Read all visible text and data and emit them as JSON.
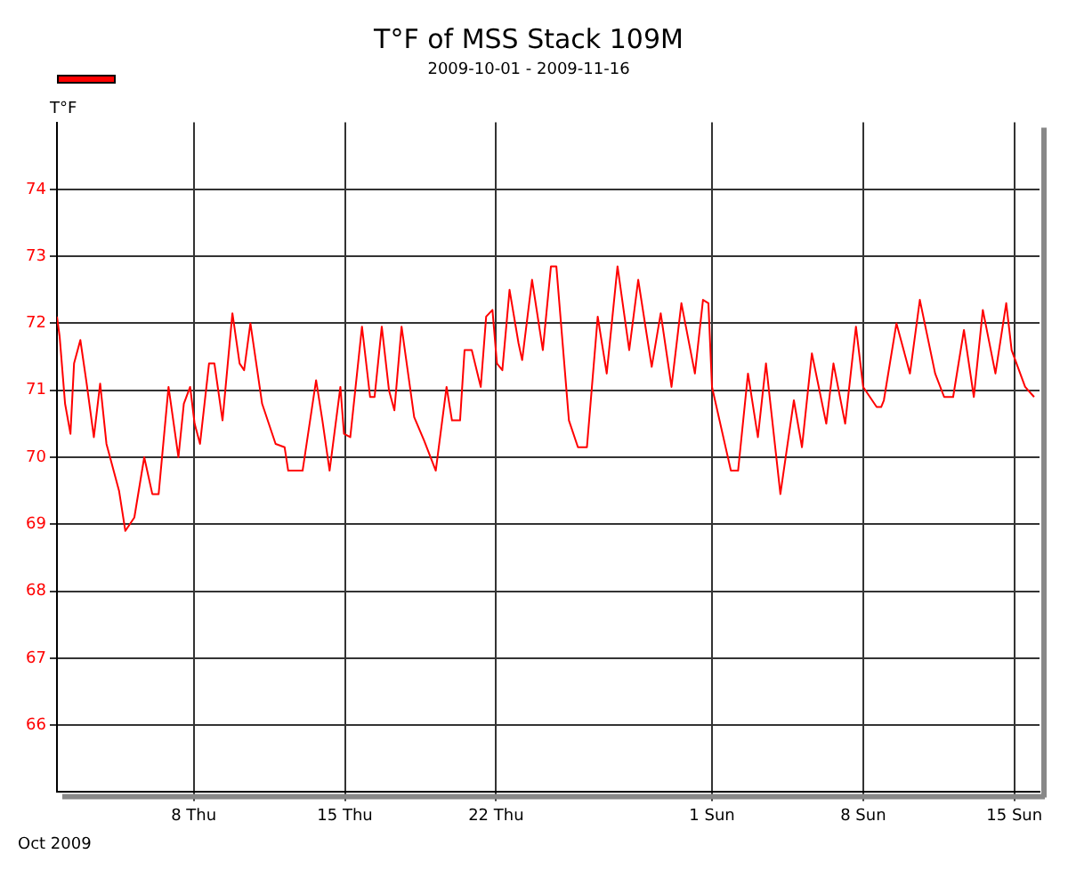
{
  "chart_data": {
    "type": "line",
    "title": "T°F of MSS Stack 109M",
    "subtitle": "2009-10-01 - 2009-11-16",
    "ylabel": "T°F",
    "annotations": [
      "Oct 2009"
    ],
    "x": [
      "2009-10-01T16:00",
      "2009-10-01T19:00",
      "2009-10-01T22:00",
      "2009-10-02T01:00",
      "2009-10-02T07:00",
      "2009-10-02T11:00",
      "2009-10-02T18:00",
      "2009-10-03T01:00",
      "2009-10-03T09:00",
      "2009-10-03T16:00",
      "2009-10-03T23:00",
      "2009-10-04T13:00",
      "2009-10-04T20:00",
      "2009-10-05T06:00",
      "2009-10-05T17:00",
      "2009-10-06T02:00",
      "2009-10-06T09:00",
      "2009-10-06T20:00",
      "2009-10-07T07:00",
      "2009-10-07T13:00",
      "2009-10-07T20:00",
      "2009-10-08T01:00",
      "2009-10-08T07:00",
      "2009-10-08T17:00",
      "2009-10-08T23:00",
      "2009-10-09T08:00",
      "2009-10-09T19:00",
      "2009-10-10T03:00",
      "2009-10-10T08:00",
      "2009-10-10T15:00",
      "2009-10-11T04:00",
      "2009-10-11T19:00",
      "2009-10-12T05:00",
      "2009-10-12T09:00",
      "2009-10-13T01:00",
      "2009-10-13T16:00",
      "2009-10-13T23:00",
      "2009-10-14T07:00",
      "2009-10-14T19:00",
      "2009-10-14T23:00",
      "2009-10-15T06:00",
      "2009-10-15T19:00",
      "2009-10-16T04:00",
      "2009-10-16T09:00",
      "2009-10-16T17:00",
      "2009-10-17T01:00",
      "2009-10-17T07:00",
      "2009-10-17T15:00",
      "2009-10-18T05:00",
      "2009-10-18T16:00",
      "2009-10-19T05:00",
      "2009-10-19T17:00",
      "2009-10-19T23:00",
      "2009-10-20T08:00",
      "2009-10-20T13:00",
      "2009-10-20T21:00",
      "2009-10-21T07:00",
      "2009-10-21T13:00",
      "2009-10-21T20:00",
      "2009-10-22T01:00",
      "2009-10-22T07:00",
      "2009-10-22T15:00",
      "2009-10-23T01:00",
      "2009-10-23T05:00",
      "2009-10-23T16:00",
      "2009-10-24T04:00",
      "2009-10-24T13:00",
      "2009-10-24T19:00",
      "2009-10-25T09:00",
      "2009-10-25T19:00",
      "2009-10-26T05:00",
      "2009-10-26T17:00",
      "2009-10-27T03:00",
      "2009-10-27T15:00",
      "2009-10-28T04:00",
      "2009-10-28T14:00",
      "2009-10-29T05:00",
      "2009-10-29T15:00",
      "2009-10-30T03:00",
      "2009-10-30T14:00",
      "2009-10-31T05:00",
      "2009-10-31T14:00",
      "2009-10-31T20:00",
      "2009-11-01T00:00",
      "2009-11-01T21:00",
      "2009-11-02T05:00",
      "2009-11-02T16:00",
      "2009-11-03T03:00",
      "2009-11-03T12:00",
      "2009-11-04T04:00",
      "2009-11-04T19:00",
      "2009-11-05T04:00",
      "2009-11-05T15:00",
      "2009-11-06T07:00",
      "2009-11-06T15:00",
      "2009-11-07T04:00",
      "2009-11-07T16:00",
      "2009-11-08T00:00",
      "2009-11-08T15:00",
      "2009-11-08T20:00",
      "2009-11-08T23:00",
      "2009-11-09T13:00",
      "2009-11-10T04:00",
      "2009-11-10T15:00",
      "2009-11-11T08:00",
      "2009-11-11T18:00",
      "2009-11-12T04:00",
      "2009-11-12T16:00",
      "2009-11-13T03:00",
      "2009-11-13T13:00",
      "2009-11-14T03:00",
      "2009-11-14T15:00",
      "2009-11-14T21:00",
      "2009-11-15T12:00",
      "2009-11-15T22:00"
    ],
    "series": [
      {
        "color": "#ff0000",
        "values": [
          72.1,
          71.8,
          71.3,
          70.8,
          70.35,
          71.4,
          71.75,
          71.1,
          70.3,
          71.1,
          70.2,
          69.5,
          68.9,
          69.1,
          70.0,
          69.45,
          69.45,
          71.05,
          70.0,
          70.8,
          71.05,
          70.5,
          70.2,
          71.4,
          71.4,
          70.55,
          72.15,
          71.4,
          71.3,
          72.0,
          70.8,
          70.2,
          70.15,
          69.8,
          69.8,
          71.15,
          70.55,
          69.8,
          71.05,
          70.35,
          70.3,
          71.95,
          70.9,
          70.9,
          71.95,
          71.0,
          70.7,
          71.95,
          70.6,
          70.25,
          69.8,
          71.05,
          70.55,
          70.55,
          71.6,
          71.6,
          71.05,
          72.1,
          72.2,
          71.4,
          71.3,
          72.5,
          71.7,
          71.45,
          72.65,
          71.6,
          72.85,
          72.85,
          70.55,
          70.15,
          70.15,
          72.1,
          71.25,
          72.85,
          71.6,
          72.65,
          71.35,
          72.15,
          71.05,
          72.3,
          71.25,
          72.35,
          72.3,
          71.05,
          69.8,
          69.8,
          71.25,
          70.3,
          71.4,
          69.45,
          70.85,
          70.15,
          71.55,
          70.5,
          71.4,
          70.5,
          71.95,
          71.05,
          70.75,
          70.75,
          70.85,
          72.0,
          71.25,
          72.35,
          71.25,
          70.9,
          70.9,
          71.9,
          70.9,
          72.2,
          71.25,
          72.3,
          71.6,
          71.05,
          70.9
        ]
      }
    ],
    "xlim": [
      "2009-10-01T16:00",
      "2009-11-16T04:00"
    ],
    "xticks": [
      {
        "value": "2009-10-08",
        "label": "8 Thu"
      },
      {
        "value": "2009-10-15",
        "label": "15 Thu"
      },
      {
        "value": "2009-10-22",
        "label": "22 Thu"
      },
      {
        "value": "2009-11-01",
        "label": "1 Sun"
      },
      {
        "value": "2009-11-08",
        "label": "8 Sun"
      },
      {
        "value": "2009-11-15",
        "label": "15 Sun"
      }
    ],
    "ylim": [
      65,
      75
    ],
    "yticks": [
      66,
      67,
      68,
      69,
      70,
      71,
      72,
      73,
      74
    ],
    "grid": true,
    "marker": "none",
    "line_style": "solid"
  }
}
